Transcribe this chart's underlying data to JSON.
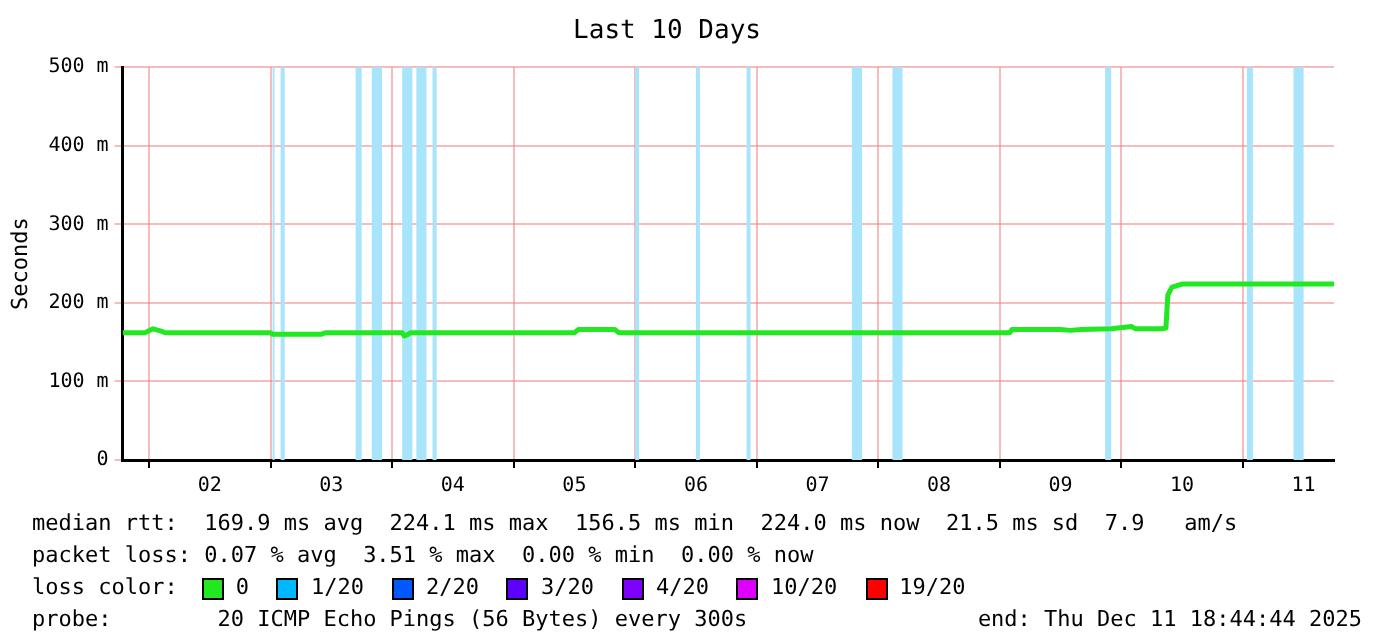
{
  "chart_data": {
    "type": "line",
    "title": "Last 10 Days",
    "ylabel": "Seconds",
    "legend_title": "loss color:",
    "legend": "bottom",
    "xlim": [
      1.783,
      11.75
    ],
    "xticks": [
      {
        "value": 2,
        "label": null
      },
      {
        "value": 2.5,
        "label": "02"
      },
      {
        "value": 3,
        "label": null
      },
      {
        "value": 3.5,
        "label": "03"
      },
      {
        "value": 4,
        "label": null
      },
      {
        "value": 4.5,
        "label": "04"
      },
      {
        "value": 5,
        "label": null
      },
      {
        "value": 5.5,
        "label": "05"
      },
      {
        "value": 6,
        "label": null
      },
      {
        "value": 6.5,
        "label": "06"
      },
      {
        "value": 7,
        "label": null
      },
      {
        "value": 7.5,
        "label": "07"
      },
      {
        "value": 8,
        "label": null
      },
      {
        "value": 8.5,
        "label": "08"
      },
      {
        "value": 9,
        "label": null
      },
      {
        "value": 9.5,
        "label": "09"
      },
      {
        "value": 10,
        "label": null
      },
      {
        "value": 10.5,
        "label": "10"
      },
      {
        "value": 11,
        "label": null
      },
      {
        "value": 11.5,
        "label": "11"
      }
    ],
    "ylim": [
      0,
      500
    ],
    "yticks": [
      {
        "value": 0,
        "label": "0"
      },
      {
        "value": 100,
        "label": "100 m"
      },
      {
        "value": 200,
        "label": "200 m"
      },
      {
        "value": 300,
        "label": "300 m"
      },
      {
        "value": 400,
        "label": "400 m"
      },
      {
        "value": 500,
        "label": "500 m"
      }
    ],
    "grid": true,
    "series": [
      {
        "name": "0",
        "color": "#22e822",
        "x": [
          1.783,
          1.967,
          2.033,
          2.1,
          2.133,
          3.0,
          3.017,
          3.417,
          3.45,
          4.083,
          4.1,
          4.133,
          4.15,
          5.5,
          5.533,
          5.833,
          5.867,
          9.083,
          9.1,
          9.5,
          9.583,
          9.667,
          9.917,
          10.083,
          10.117,
          10.333,
          10.367,
          10.383,
          10.417,
          10.5,
          11.75
        ],
        "values": [
          162,
          162,
          167,
          164,
          162,
          162,
          160,
          160,
          162,
          162,
          158,
          160,
          162,
          162,
          166,
          166,
          162,
          162,
          166,
          166,
          165,
          166,
          167,
          170,
          167,
          167,
          168,
          210,
          220,
          224,
          224
        ]
      },
      {
        "name": "1/20",
        "color": "#00b8ff"
      },
      {
        "name": "2/20",
        "color": "#0059ff"
      },
      {
        "name": "3/20",
        "color": "#5e00ff"
      },
      {
        "name": "4/20",
        "color": "#7e00ff"
      },
      {
        "name": "10/20",
        "color": "#dd00ff"
      },
      {
        "name": "19/20",
        "color": "#ff0000"
      }
    ],
    "bands": [
      {
        "axis": "x",
        "from": 3.017,
        "to": 3.033,
        "color": "#a8e4fc"
      },
      {
        "axis": "x",
        "from": 3.083,
        "to": 3.117,
        "color": "#a8e4fc"
      },
      {
        "axis": "x",
        "from": 3.7,
        "to": 3.75,
        "color": "#a8e4fc"
      },
      {
        "axis": "x",
        "from": 3.833,
        "to": 3.917,
        "color": "#a8e4fc"
      },
      {
        "axis": "x",
        "from": 4.083,
        "to": 4.167,
        "color": "#a8e4fc"
      },
      {
        "axis": "x",
        "from": 4.2,
        "to": 4.283,
        "color": "#a8e4fc"
      },
      {
        "axis": "x",
        "from": 4.333,
        "to": 4.367,
        "color": "#a8e4fc"
      },
      {
        "axis": "x",
        "from": 6.0,
        "to": 6.033,
        "color": "#a8e4fc"
      },
      {
        "axis": "x",
        "from": 6.5,
        "to": 6.533,
        "color": "#a8e4fc"
      },
      {
        "axis": "x",
        "from": 6.917,
        "to": 6.95,
        "color": "#a8e4fc"
      },
      {
        "axis": "x",
        "from": 7.783,
        "to": 7.867,
        "color": "#a8e4fc"
      },
      {
        "axis": "x",
        "from": 8.117,
        "to": 8.2,
        "color": "#a8e4fc"
      },
      {
        "axis": "x",
        "from": 9.867,
        "to": 9.917,
        "color": "#a8e4fc"
      },
      {
        "axis": "x",
        "from": 11.033,
        "to": 11.083,
        "color": "#a8e4fc"
      },
      {
        "axis": "x",
        "from": 11.417,
        "to": 11.5,
        "color": "#a8e4fc"
      }
    ],
    "annotations": [
      "median rtt:  169.9 ms avg  224.1 ms max  156.5 ms min  224.0 ms now  21.5 ms sd  7.9   am/s",
      "packet loss: 0.07 % avg  3.51 % max  0.00 % min  0.00 % now",
      "probe:        20 ICMP Echo Pings (56 Bytes) every 300s",
      "end: Thu Dec 11 18:44:44 2025"
    ]
  }
}
